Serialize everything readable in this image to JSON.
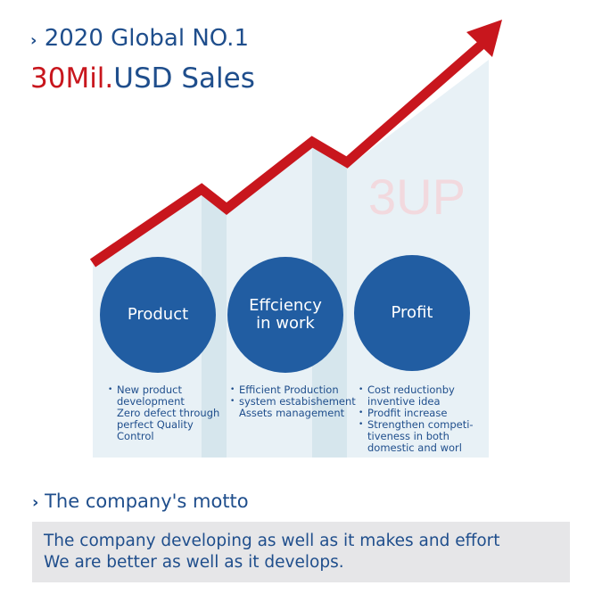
{
  "header": {
    "line1_prefix": "›",
    "line1": "2020 Global NO.1",
    "line2_highlight": "30Mil.",
    "line2_rest": "USD Sales"
  },
  "watermark": "3UP",
  "colors": {
    "accent_red": "#c8161d",
    "brand_blue": "#1f4e8c",
    "circle_blue": "#215da2",
    "panel_light": "#e8f1f6",
    "panel_dark": "#d6e6ed",
    "watermark": "#f2d9de",
    "motto_bg": "#e6e6e8"
  },
  "pillars": [
    {
      "title_lines": [
        "Product"
      ],
      "bullets": [
        "New product development Zero defect through perfect Quality Control"
      ],
      "bullet_lines": [
        [
          "New product",
          "development",
          "Zero defect through",
          "perfect Quality",
          "Control"
        ]
      ]
    },
    {
      "title_lines": [
        "Effciency",
        "in work"
      ],
      "bullet_lines": [
        [
          "Efficient Production"
        ],
        [
          "system estabishement",
          "Assets management"
        ]
      ]
    },
    {
      "title_lines": [
        "Profit"
      ],
      "bullet_lines": [
        [
          "Cost reductionby",
          "inventive idea"
        ],
        [
          "Prodfit increase"
        ],
        [
          "Strengthen competi-",
          "tiveness in both",
          "domestic and worl"
        ]
      ]
    }
  ],
  "motto": {
    "prefix": "›",
    "title": "The company's motto",
    "lines": [
      "The company developing as well as it makes and effort",
      "We are better as well as it develops."
    ]
  }
}
